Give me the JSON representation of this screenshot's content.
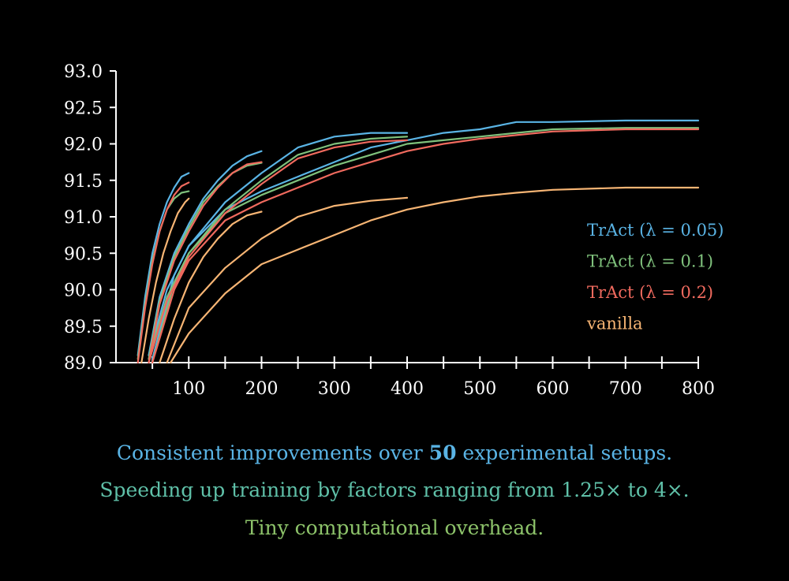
{
  "chart_data": {
    "type": "line",
    "title": "",
    "xlabel": "",
    "ylabel": "",
    "xlim": [
      0,
      800
    ],
    "ylim": [
      89.0,
      93.0
    ],
    "x_ticks": [
      50,
      100,
      150,
      200,
      250,
      300,
      350,
      400,
      450,
      500,
      550,
      600,
      650,
      700,
      750,
      800
    ],
    "x_tick_labels": [
      "100",
      "200",
      "300",
      "400",
      "500",
      "600",
      "700",
      "800"
    ],
    "x_tick_label_values": [
      100,
      200,
      300,
      400,
      500,
      600,
      700,
      800
    ],
    "y_tick_labels": [
      "89.0",
      "89.5",
      "90.0",
      "90.5",
      "91.0",
      "91.5",
      "92.0",
      "92.5",
      "93.0"
    ],
    "y_tick_values": [
      89.0,
      89.5,
      90.0,
      90.5,
      91.0,
      91.5,
      92.0,
      92.5,
      93.0
    ],
    "grid": false,
    "legend_position": "right",
    "series": [
      {
        "name": "TrAct (λ = 0.05)",
        "color": "#5ab4e5",
        "runs": [
          {
            "x": [
              30,
              40,
              50,
              60,
              70,
              80,
              90,
              100
            ],
            "y": [
              89.1,
              89.9,
              90.5,
              90.9,
              91.2,
              91.4,
              91.55,
              91.6
            ]
          },
          {
            "x": [
              45,
              60,
              80,
              100,
              120,
              140,
              160,
              180,
              200
            ],
            "y": [
              89.1,
              89.9,
              90.5,
              90.9,
              91.25,
              91.5,
              91.7,
              91.83,
              91.9
            ]
          },
          {
            "x": [
              45,
              70,
              100,
              150,
              200,
              250,
              300,
              350,
              400
            ],
            "y": [
              89.1,
              90.0,
              90.6,
              91.2,
              91.6,
              91.95,
              92.1,
              92.15,
              92.15
            ]
          },
          {
            "x": [
              50,
              80,
              100,
              150,
              200,
              250,
              300,
              350,
              400,
              450,
              500,
              550,
              600,
              700,
              800
            ],
            "y": [
              89.05,
              90.2,
              90.6,
              91.1,
              91.35,
              91.55,
              91.75,
              91.95,
              92.05,
              92.15,
              92.2,
              92.3,
              92.3,
              92.32,
              92.32
            ]
          }
        ]
      },
      {
        "name": "TrAct (λ = 0.1)",
        "color": "#7fc17c",
        "runs": [
          {
            "x": [
              30,
              40,
              50,
              60,
              70,
              80,
              90,
              100
            ],
            "y": [
              89.05,
              89.8,
              90.4,
              90.8,
              91.1,
              91.25,
              91.33,
              91.35
            ]
          },
          {
            "x": [
              45,
              60,
              80,
              100,
              120,
              140,
              160,
              180,
              200
            ],
            "y": [
              89.05,
              89.85,
              90.45,
              90.85,
              91.2,
              91.42,
              91.6,
              91.7,
              91.74
            ]
          },
          {
            "x": [
              45,
              70,
              100,
              150,
              200,
              250,
              300,
              350,
              400
            ],
            "y": [
              89.05,
              89.9,
              90.5,
              91.1,
              91.5,
              91.85,
              92.0,
              92.07,
              92.1
            ]
          },
          {
            "x": [
              50,
              80,
              100,
              150,
              200,
              250,
              300,
              350,
              400,
              450,
              500,
              550,
              600,
              700,
              800
            ],
            "y": [
              89.0,
              90.1,
              90.5,
              91.05,
              91.3,
              91.5,
              91.7,
              91.85,
              92.0,
              92.05,
              92.1,
              92.15,
              92.2,
              92.22,
              92.22
            ]
          }
        ]
      },
      {
        "name": "TrAct (λ = 0.2)",
        "color": "#f06a5e",
        "runs": [
          {
            "x": [
              30,
              40,
              50,
              60,
              70,
              80,
              90,
              100
            ],
            "y": [
              89.0,
              89.75,
              90.35,
              90.8,
              91.1,
              91.3,
              91.42,
              91.47
            ]
          },
          {
            "x": [
              45,
              60,
              80,
              100,
              120,
              140,
              160,
              180,
              200
            ],
            "y": [
              89.0,
              89.8,
              90.4,
              90.8,
              91.15,
              91.4,
              91.6,
              91.72,
              91.75
            ]
          },
          {
            "x": [
              45,
              70,
              100,
              150,
              200,
              250,
              300,
              350,
              400
            ],
            "y": [
              89.0,
              89.85,
              90.45,
              91.05,
              91.45,
              91.8,
              91.95,
              92.03,
              92.05
            ]
          },
          {
            "x": [
              50,
              80,
              100,
              150,
              200,
              250,
              300,
              350,
              400,
              450,
              500,
              550,
              600,
              700,
              800
            ],
            "y": [
              89.0,
              90.0,
              90.4,
              90.95,
              91.2,
              91.4,
              91.6,
              91.75,
              91.9,
              92.0,
              92.07,
              92.12,
              92.17,
              92.2,
              92.2
            ]
          }
        ]
      },
      {
        "name": "vanilla",
        "color": "#f7b574",
        "runs": [
          {
            "x": [
              35,
              45,
              55,
              65,
              75,
              85,
              95,
              100
            ],
            "y": [
              89.0,
              89.6,
              90.1,
              90.5,
              90.8,
              91.05,
              91.2,
              91.25
            ]
          },
          {
            "x": [
              60,
              80,
              100,
              120,
              140,
              160,
              180,
              200
            ],
            "y": [
              89.0,
              89.6,
              90.1,
              90.45,
              90.7,
              90.9,
              91.02,
              91.07
            ]
          },
          {
            "x": [
              70,
              100,
              150,
              200,
              250,
              300,
              350,
              400
            ],
            "y": [
              89.0,
              89.75,
              90.3,
              90.7,
              91.0,
              91.15,
              91.22,
              91.26
            ]
          },
          {
            "x": [
              75,
              100,
              150,
              200,
              250,
              300,
              350,
              400,
              450,
              500,
              550,
              600,
              700,
              800
            ],
            "y": [
              89.0,
              89.4,
              89.95,
              90.35,
              90.55,
              90.75,
              90.95,
              91.1,
              91.2,
              91.28,
              91.33,
              91.37,
              91.4,
              91.4
            ]
          }
        ]
      }
    ]
  },
  "captions": {
    "line1_pre": "Consistent improvements over ",
    "line1_bold": "50",
    "line1_post": " experimental setups.",
    "line2": "Speeding up training by factors ranging from 1.25× to 4×.",
    "line3": "Tiny computational overhead."
  },
  "colors": {
    "background": "#000000",
    "axis": "#ffffff",
    "caption1": "#5ab4e5",
    "caption2": "#5fc0a8",
    "caption3": "#8dc36a"
  }
}
